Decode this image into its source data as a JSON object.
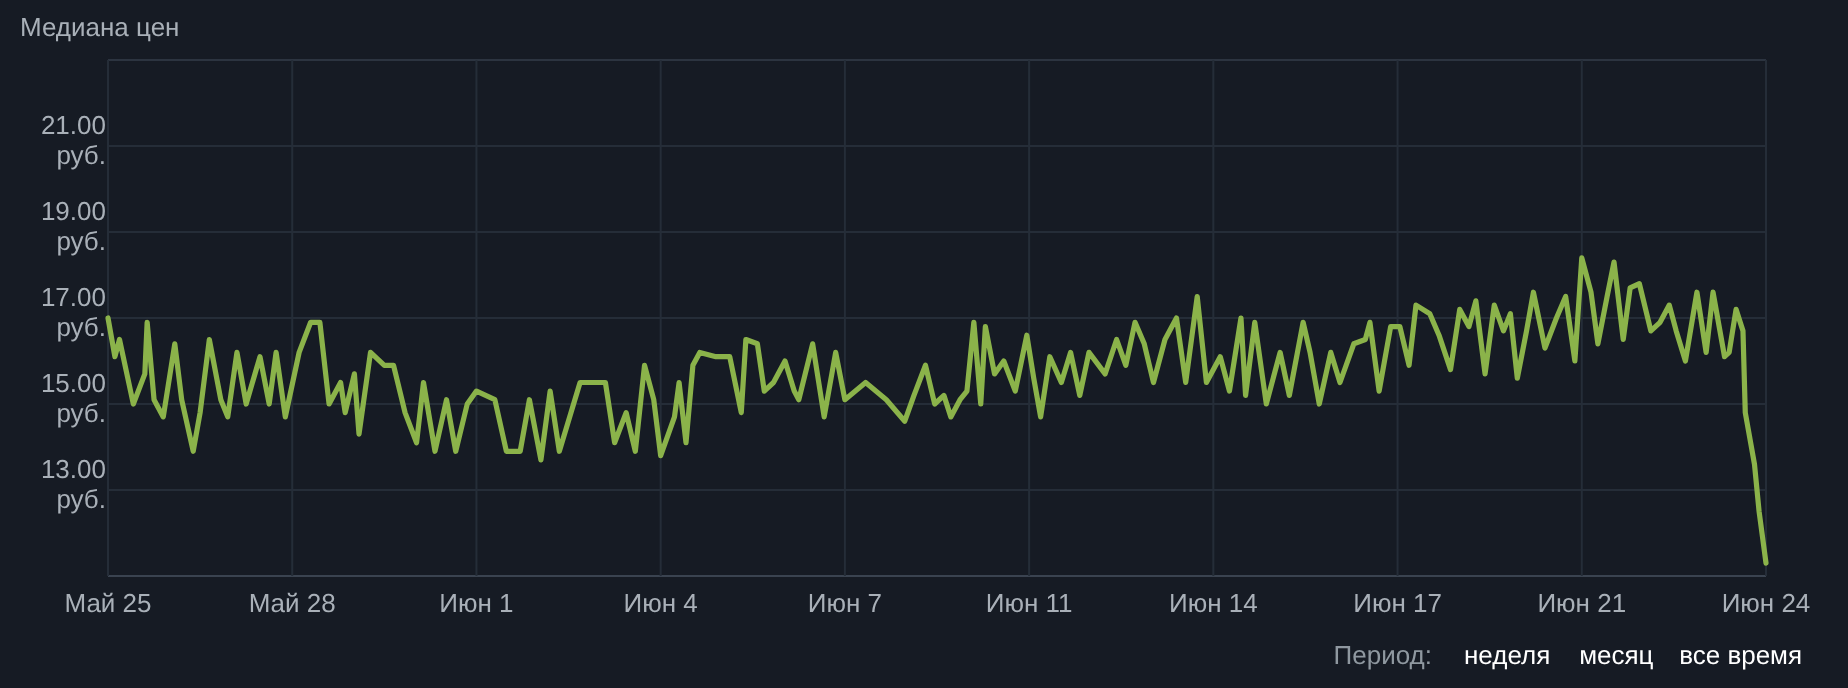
{
  "chart_data": {
    "type": "line",
    "title": "Медиана цен",
    "x": [
      "--05-25T00:00",
      "--05-25T03:00",
      "--05-25T05:00",
      "--05-25T11:00",
      "--05-25T16:00",
      "--05-25T17:00",
      "--05-25T20:00",
      "--05-26T00:00",
      "--05-26T05:00",
      "--05-26T08:00",
      "--05-26T13:00",
      "--05-26T16:00",
      "--05-26T20:00",
      "--05-27T01:00",
      "--05-27T04:00",
      "--05-27T08:00",
      "--05-27T12:00",
      "--05-27T18:00",
      "--05-27T22:00",
      "--05-28T01:00",
      "--05-28T05:00",
      "--05-28T11:00",
      "--05-28T16:00",
      "--05-28T20:00",
      "--05-29T00:00",
      "--05-29T05:00",
      "--05-29T07:00",
      "--05-29T11:00",
      "--05-29T13:00",
      "--05-29T18:00",
      "--05-30T00:00",
      "--05-30T04:00",
      "--05-30T09:00",
      "--05-30T14:00",
      "--05-30T17:00",
      "--05-30T22:00",
      "--05-31T03:00",
      "--05-31T07:00",
      "--05-31T12:00",
      "--05-31T16:00",
      "--06-01T00:00",
      "--06-01T05:00",
      "--06-01T11:00",
      "--06-01T15:00",
      "--06-01T20:00",
      "--06-02T00:00",
      "--06-02T04:00",
      "--06-02T13:00",
      "--06-02T19:00",
      "--06-03T00:00",
      "--06-03T04:00",
      "--06-03T09:00",
      "--06-03T13:00",
      "--06-03T17:00",
      "--06-03T21:00",
      "--06-04T00:00",
      "--06-04T06:00",
      "--06-04T08:00",
      "--06-04T11:00",
      "--06-04T14:00",
      "--06-04T17:00",
      "--06-05T00:00",
      "--06-05T06:00",
      "--06-05T11:00",
      "--06-05T13:00",
      "--06-05T18:00",
      "--06-05T21:00",
      "--06-06T01:00",
      "--06-06T06:00",
      "--06-06T10:00",
      "--06-06T12:00",
      "--06-06T18:00",
      "--06-06T23:00",
      "--06-07T04:00",
      "--06-07T08:00",
      "--06-07T17:00",
      "--06-08T02:00",
      "--06-08T10:00",
      "--06-08T14:00",
      "--06-08T19:00",
      "--06-08T23:00",
      "--06-09T03:00",
      "--06-09T06:00",
      "--06-09T10:00",
      "--06-09T13:00",
      "--06-09T16:00",
      "--06-09T19:00",
      "--06-09T21:00",
      "--06-10T01:00",
      "--06-10T05:00",
      "--06-10T10:00",
      "--06-10T15:00",
      "--06-10T18:00",
      "--06-10T21:00",
      "--06-11T01:00",
      "--06-11T06:00",
      "--06-11T10:00",
      "--06-11T14:00",
      "--06-11T18:00",
      "--06-12T01:00",
      "--06-12T06:00",
      "--06-12T10:00",
      "--06-12T14:00",
      "--06-12T18:00",
      "--06-12T22:00",
      "--06-13T03:00",
      "--06-13T08:00",
      "--06-13T12:00",
      "--06-13T17:00",
      "--06-13T21:00",
      "--06-14T03:00",
      "--06-14T07:00",
      "--06-14T12:00",
      "--06-14T14:00",
      "--06-14T18:00",
      "--06-14T23:00",
      "--06-15T05:00",
      "--06-15T09:00",
      "--06-15T15:00",
      "--06-15T18:00",
      "--06-15T22:00",
      "--06-16T03:00",
      "--06-16T07:00",
      "--06-16T13:00",
      "--06-16T18:00",
      "--06-16T20:00",
      "--06-17T00:00",
      "--06-17T05:00",
      "--06-17T09:00",
      "--06-17T13:00",
      "--06-17T16:00",
      "--06-17T22:00",
      "--06-18T02:00",
      "--06-18T07:00",
      "--06-18T11:00",
      "--06-18T15:00",
      "--06-18T18:00",
      "--06-18T22:00",
      "--06-19T02:00",
      "--06-19T06:00",
      "--06-19T09:00",
      "--06-19T12:00",
      "--06-19T16:00",
      "--06-19T19:00",
      "--06-20T00:00",
      "--06-20T05:00",
      "--06-20T09:00",
      "--06-20T13:00",
      "--06-20T16:00",
      "--06-20T20:00",
      "--06-20T23:00",
      "--06-21T03:00",
      "--06-21T06:00",
      "--06-21T10:00",
      "--06-21T13:00",
      "--06-21T17:00",
      "--06-21T22:00",
      "--06-22T02:00",
      "--06-22T06:00",
      "--06-22T09:00",
      "--06-22T13:00",
      "--06-22T18:00",
      "--06-22T22:00",
      "--06-23T01:00",
      "--06-23T06:00",
      "--06-23T08:00",
      "--06-23T11:00",
      "--06-23T14:00",
      "--06-23T15:00",
      "--06-23T19:00",
      "--06-23T21:00",
      "--06-24T00:00"
    ],
    "series": [
      {
        "color": "#8bb34a",
        "values": [
          17.0,
          16.1,
          16.5,
          15.0,
          15.7,
          16.9,
          15.1,
          14.7,
          16.4,
          15.1,
          13.9,
          14.8,
          16.5,
          15.1,
          14.7,
          16.2,
          15.0,
          16.1,
          15.0,
          16.2,
          14.7,
          16.2,
          16.9,
          16.9,
          15.0,
          15.5,
          14.8,
          15.7,
          14.3,
          16.2,
          15.9,
          15.9,
          14.8,
          14.1,
          15.5,
          13.9,
          15.1,
          13.9,
          15.0,
          15.3,
          15.1,
          13.9,
          13.9,
          15.1,
          13.7,
          15.3,
          13.9,
          15.5,
          15.5,
          15.5,
          14.1,
          14.8,
          13.9,
          15.9,
          15.1,
          13.8,
          14.7,
          15.5,
          14.1,
          15.9,
          16.2,
          16.1,
          16.1,
          14.8,
          16.5,
          16.4,
          15.3,
          15.5,
          16.0,
          15.3,
          15.1,
          16.4,
          14.7,
          16.2,
          15.1,
          15.5,
          15.1,
          14.6,
          15.2,
          15.9,
          15.0,
          15.2,
          14.7,
          15.1,
          15.3,
          16.9,
          15.0,
          16.8,
          15.7,
          16.0,
          15.3,
          16.6,
          15.6,
          14.7,
          16.1,
          15.5,
          16.2,
          15.2,
          16.2,
          15.7,
          16.5,
          15.9,
          16.9,
          16.4,
          15.5,
          16.5,
          17.0,
          15.5,
          17.5,
          15.5,
          16.1,
          15.3,
          17.0,
          15.2,
          16.9,
          15.0,
          16.2,
          15.2,
          16.9,
          16.2,
          15.0,
          16.2,
          15.5,
          16.4,
          16.5,
          16.9,
          15.3,
          16.8,
          16.8,
          15.9,
          17.3,
          17.1,
          16.6,
          15.8,
          17.2,
          16.8,
          17.4,
          15.7,
          17.3,
          16.7,
          17.1,
          15.6,
          16.7,
          17.6,
          16.3,
          17.0,
          17.5,
          16.0,
          18.4,
          17.6,
          16.4,
          17.5,
          18.3,
          16.5,
          17.7,
          17.8,
          16.7,
          16.9,
          17.3,
          16.7,
          16.0,
          17.6,
          16.2,
          17.6,
          16.1,
          16.2,
          17.2,
          16.7,
          14.8,
          13.6,
          12.5,
          11.3
        ]
      }
    ],
    "xlim": [
      "--05-25T00:00",
      "--06-24T00:00"
    ],
    "xticks": [
      {
        "value": "--05-25T00:00",
        "label": "Май 25"
      },
      {
        "value": "--05-28T08:00",
        "label": "Май 28"
      },
      {
        "value": "--05-31T16:00",
        "label": "Июн 1"
      },
      {
        "value": "--06-04T00:00",
        "label": "Июн 4"
      },
      {
        "value": "--06-07T08:00",
        "label": "Июн 7"
      },
      {
        "value": "--06-10T16:00",
        "label": "Июн 11"
      },
      {
        "value": "--06-14T00:00",
        "label": "Июн 14"
      },
      {
        "value": "--06-17T08:00",
        "label": "Июн 17"
      },
      {
        "value": "--06-20T16:00",
        "label": "Июн 21"
      },
      {
        "value": "--06-24T00:00",
        "label": "Июн 24"
      }
    ],
    "ylim": [
      11,
      23
    ],
    "yticks": [
      {
        "value": 13,
        "label": "13.00 руб."
      },
      {
        "value": 15,
        "label": "15.00 руб."
      },
      {
        "value": 17,
        "label": "17.00 руб."
      },
      {
        "value": 19,
        "label": "19.00 руб."
      },
      {
        "value": 21,
        "label": "21.00 руб."
      }
    ],
    "grid": true,
    "line_style": "solid",
    "marker": "none",
    "annotations": [
      "Период:",
      "неделя",
      "месяц",
      "все время"
    ]
  }
}
